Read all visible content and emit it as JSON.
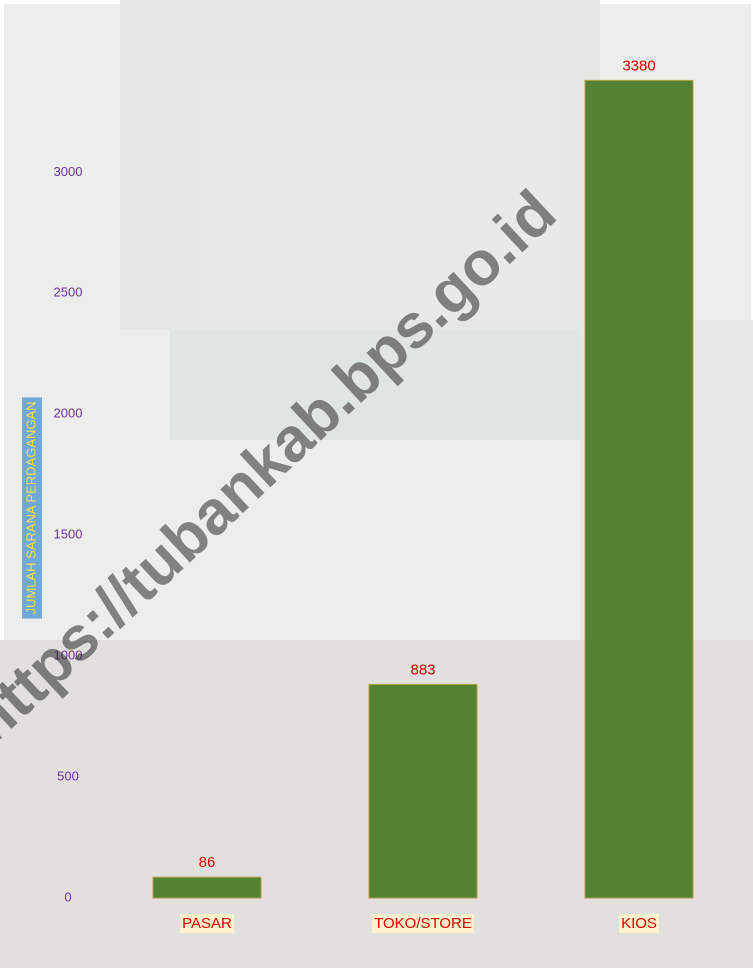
{
  "chart_data": {
    "type": "bar",
    "y_label": "JUMLAH SARANA PERDAGANGAN",
    "categories": [
      "PASAR",
      "TOKO/STORE",
      "KIOS"
    ],
    "values": [
      86,
      883,
      3380
    ],
    "color": "#548235",
    "ylim": [
      0,
      3700
    ],
    "yticks": [
      0,
      500,
      1000,
      1500,
      2000,
      2500,
      3000
    ],
    "grid": false,
    "watermark": "https://tubankab.bps.go.id"
  }
}
